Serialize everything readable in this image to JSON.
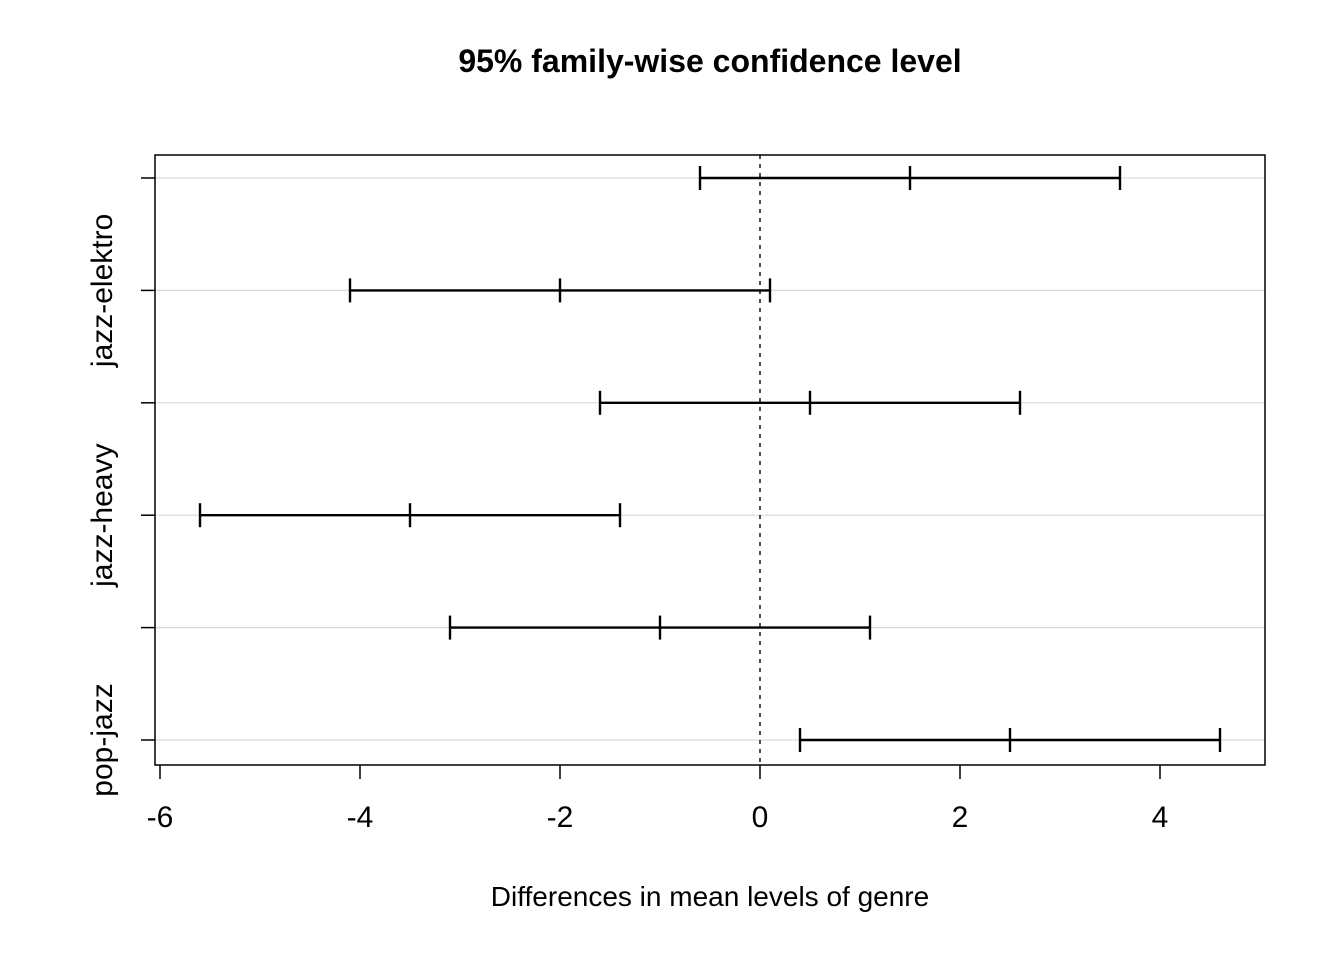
{
  "chart_data": {
    "type": "errorbar",
    "title": "95% family-wise confidence level",
    "xlabel": "Differences in mean levels of genre",
    "xlim": [
      -6.05,
      5.05
    ],
    "xticks": [
      -6,
      -4,
      -2,
      0,
      2,
      4
    ],
    "reference_line_x": 0,
    "grid": true,
    "legend": "none",
    "colors": {
      "bar": "#000000",
      "grid": "#d9d9d9",
      "reference_line": "#000000",
      "axis": "#000000"
    },
    "rows": [
      {
        "label": "",
        "lower": -0.6,
        "center": 1.5,
        "upper": 3.6
      },
      {
        "label": "jazz-elektro",
        "lower": -4.1,
        "center": -2.0,
        "upper": 0.1
      },
      {
        "label": "",
        "lower": -1.6,
        "center": 0.5,
        "upper": 2.6
      },
      {
        "label": "jazz-heavy",
        "lower": -5.6,
        "center": -3.5,
        "upper": -1.4
      },
      {
        "label": "",
        "lower": -3.1,
        "center": -1.0,
        "upper": 1.1
      },
      {
        "label": "pop-jazz",
        "lower": 0.4,
        "center": 2.5,
        "upper": 4.6
      }
    ]
  }
}
